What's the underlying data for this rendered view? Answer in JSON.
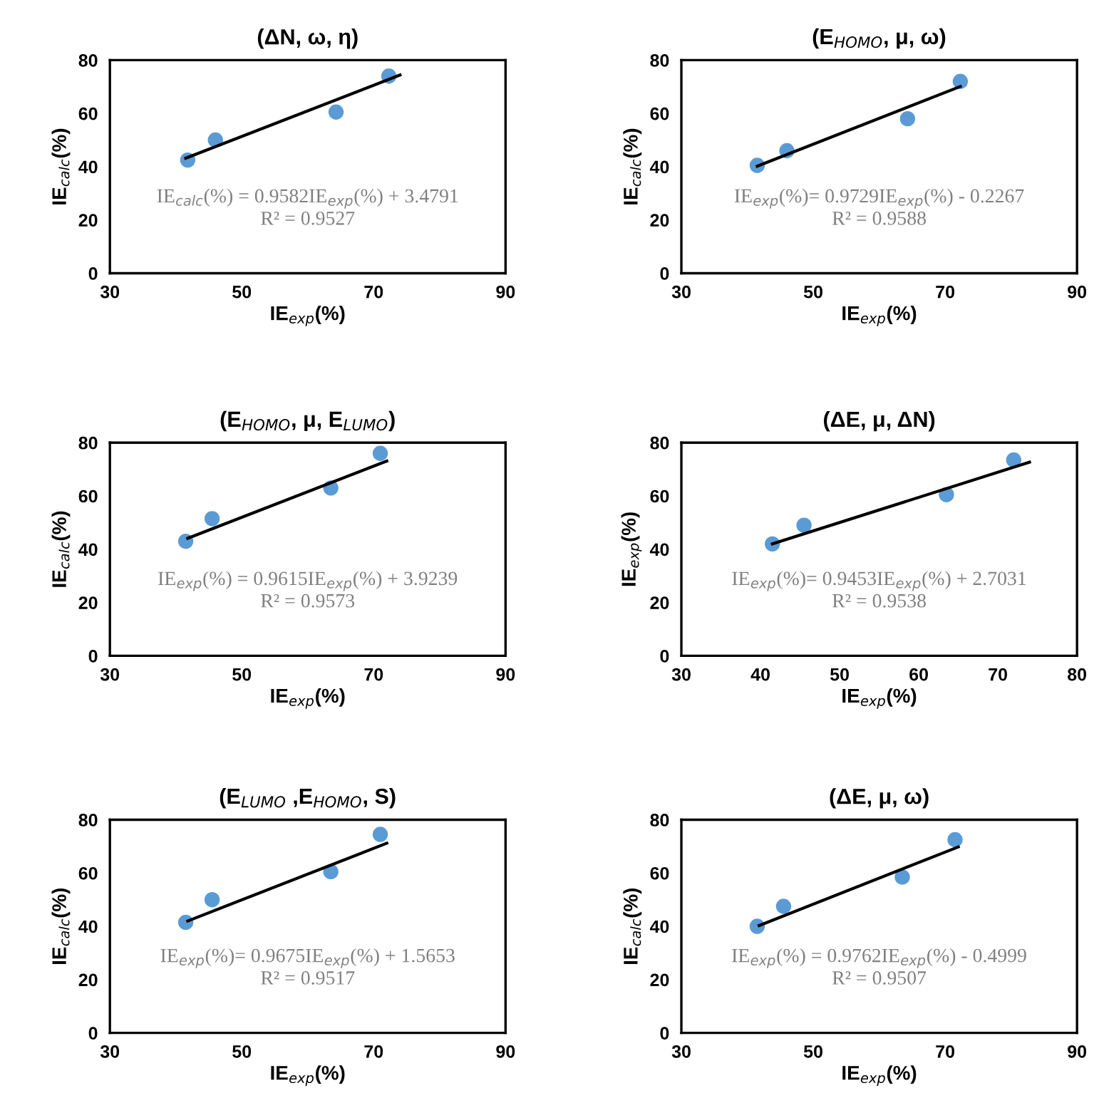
{
  "chart_data": [
    {
      "type": "scatter",
      "title": "(ΔN, ω, η)",
      "xlabel": "IE$_{exp}$(%)",
      "ylabel": "IE$_{calc}$(%)",
      "xlim": [
        30,
        90
      ],
      "xticks": [
        30,
        50,
        70,
        90
      ],
      "ylim": [
        0,
        80
      ],
      "yticks": [
        0,
        20,
        40,
        60,
        80
      ],
      "grid": false,
      "annotations": [
        "IE$_{calc}$(%) = 0.9582IE$_{exp}$(%) + 3.4791",
        "R² = 0.9527"
      ],
      "series": [
        {
          "color": "#5b9bd5",
          "marker": "circle",
          "x": [
            41.8,
            46,
            64.3,
            72.3
          ],
          "values": [
            42.5,
            50,
            60.5,
            74
          ]
        },
        {
          "type": "line",
          "color": "#000000",
          "marker": "none",
          "line_style": "solid",
          "x": [
            41.5,
            74
          ],
          "values": [
            43.2,
            74.4
          ]
        }
      ]
    },
    {
      "type": "scatter",
      "title": "(E$_{HOMO}$, μ, ω)",
      "xlabel": "IE$_{exp}$(%)",
      "ylabel": "IE$_{calc}$(%)",
      "xlim": [
        30,
        90
      ],
      "xticks": [
        30,
        50,
        70,
        90
      ],
      "ylim": [
        0,
        80
      ],
      "yticks": [
        0,
        20,
        40,
        60,
        80
      ],
      "grid": false,
      "annotations": [
        "IE$_{exp}$(%)= 0.9729IE$_{exp}$(%) - 0.2267",
        "R² = 0.9588"
      ],
      "series": [
        {
          "color": "#5b9bd5",
          "marker": "circle",
          "x": [
            41.5,
            46,
            64.3,
            72.3
          ],
          "values": [
            40.5,
            46,
            58,
            72
          ]
        },
        {
          "type": "line",
          "color": "#000000",
          "marker": "none",
          "line_style": "solid",
          "x": [
            41.5,
            72.3
          ],
          "values": [
            40.2,
            70.1
          ]
        }
      ]
    },
    {
      "type": "scatter",
      "title": "(E$_{HOMO}$, μ, E$_{LUMO}$)",
      "xlabel": "IE$_{exp}$(%)",
      "ylabel": "IE$_{calc}$(%)",
      "xlim": [
        30,
        90
      ],
      "xticks": [
        30,
        50,
        70,
        90
      ],
      "ylim": [
        0,
        80
      ],
      "yticks": [
        0,
        20,
        40,
        60,
        80
      ],
      "grid": false,
      "annotations": [
        "IE$_{exp}$(%) = 0.9615IE$_{exp}$(%) + 3.9239",
        "R² = 0.9573"
      ],
      "series": [
        {
          "color": "#5b9bd5",
          "marker": "circle",
          "x": [
            41.5,
            45.5,
            63.5,
            71
          ],
          "values": [
            43,
            51.5,
            63,
            76
          ]
        },
        {
          "type": "line",
          "color": "#000000",
          "marker": "none",
          "line_style": "solid",
          "x": [
            41.8,
            72
          ],
          "values": [
            44.1,
            73.1
          ]
        }
      ]
    },
    {
      "type": "scatter",
      "title": "(ΔE, μ, ΔN)",
      "xlabel": "IE$_{exp}$(%)",
      "ylabel": "IE$_{exp}$(%)",
      "xlim": [
        30,
        80
      ],
      "xticks": [
        30,
        40,
        50,
        60,
        70,
        80
      ],
      "ylim": [
        0,
        80
      ],
      "yticks": [
        0,
        20,
        40,
        60,
        80
      ],
      "grid": false,
      "annotations": [
        "IE$_{exp}$(%)= 0.9453IE$_{exp}$(%) + 2.7031",
        "R² = 0.9538"
      ],
      "series": [
        {
          "color": "#5b9bd5",
          "marker": "circle",
          "x": [
            41.5,
            45.5,
            63.5,
            72
          ],
          "values": [
            42,
            49,
            60.5,
            73.5
          ]
        },
        {
          "type": "line",
          "color": "#000000",
          "marker": "none",
          "line_style": "solid",
          "x": [
            41.5,
            74
          ],
          "values": [
            42,
            72.7
          ]
        }
      ]
    },
    {
      "type": "scatter",
      "title": "(E$_{LUMO}$ ,E$_{HOMO}$, S)",
      "xlabel": "IE$_{exp}$(%)",
      "ylabel": "IE$_{calc}$(%)",
      "xlim": [
        30,
        90
      ],
      "xticks": [
        30,
        50,
        70,
        90
      ],
      "ylim": [
        0,
        80
      ],
      "yticks": [
        0,
        20,
        40,
        60,
        80
      ],
      "grid": false,
      "annotations": [
        "IE$_{exp}$(%)= 0.9675IE$_{exp}$(%) + 1.5653",
        "R² = 0.9517"
      ],
      "series": [
        {
          "color": "#5b9bd5",
          "marker": "circle",
          "x": [
            41.5,
            45.5,
            63.5,
            71
          ],
          "values": [
            41.5,
            50,
            60.5,
            74.5
          ]
        },
        {
          "type": "line",
          "color": "#000000",
          "marker": "none",
          "line_style": "solid",
          "x": [
            41.8,
            72
          ],
          "values": [
            42,
            71.2
          ]
        }
      ]
    },
    {
      "type": "scatter",
      "title": "(ΔE, μ, ω)",
      "xlabel": "IE$_{exp}$(%)",
      "ylabel": "IE$_{calc}$(%)",
      "xlim": [
        30,
        90
      ],
      "xticks": [
        30,
        50,
        70,
        90
      ],
      "ylim": [
        0,
        80
      ],
      "yticks": [
        0,
        20,
        40,
        60,
        80
      ],
      "grid": false,
      "annotations": [
        "IE$_{exp}$(%) = 0.9762IE$_{exp}$(%) - 0.4999",
        "R² = 0.9507"
      ],
      "series": [
        {
          "color": "#5b9bd5",
          "marker": "circle",
          "x": [
            41.5,
            45.5,
            63.5,
            71.5
          ],
          "values": [
            40,
            47.5,
            58.5,
            72.5
          ]
        },
        {
          "type": "line",
          "color": "#000000",
          "marker": "none",
          "line_style": "solid",
          "x": [
            41.8,
            72
          ],
          "values": [
            40.3,
            69.8
          ]
        }
      ]
    }
  ]
}
